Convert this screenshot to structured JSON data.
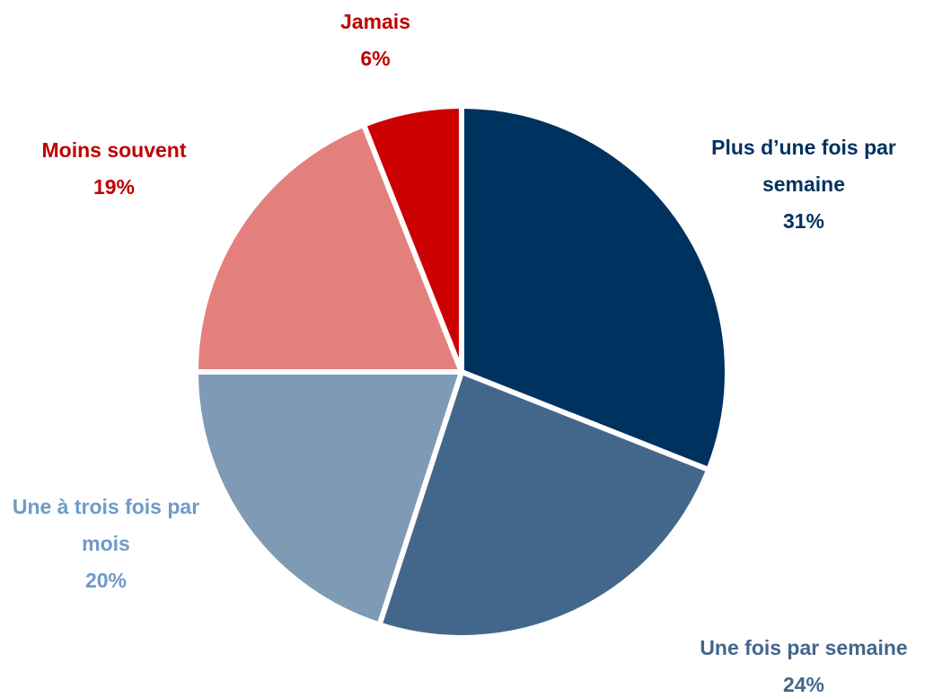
{
  "chart_data": {
    "type": "pie",
    "categories": [
      "Plus d’une fois par semaine",
      "Une fois par semaine",
      "Une à trois fois par mois",
      "Moins souvent",
      "Jamais"
    ],
    "values": [
      31,
      24,
      20,
      19,
      6
    ],
    "value_labels": [
      "31%",
      "24%",
      "20%",
      "19%",
      "6%"
    ],
    "colors": [
      "#00325f",
      "#43678b",
      "#7f9ab5",
      "#e3807e",
      "#cc0000"
    ],
    "label_colors": [
      "#00325f",
      "#43678b",
      "#6f9ac9",
      "#c00000",
      "#c00000"
    ],
    "start_angle": 0,
    "direction": "clockwise"
  }
}
